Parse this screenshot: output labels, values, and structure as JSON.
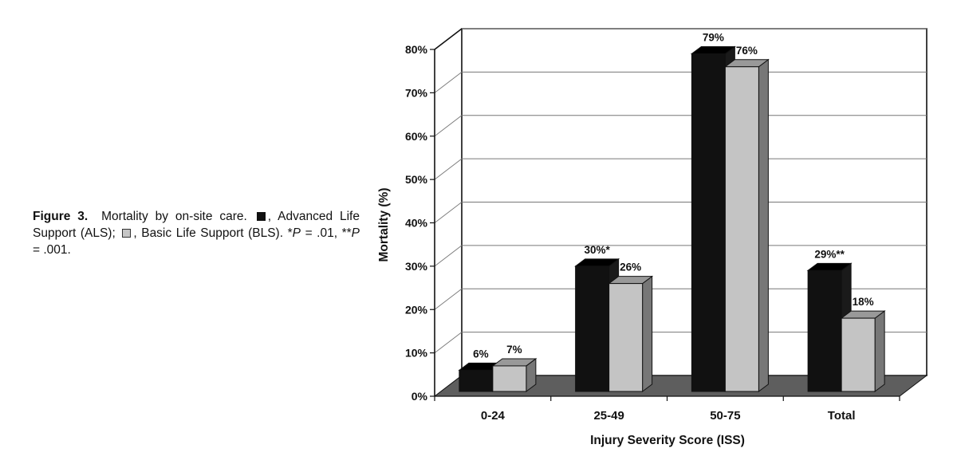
{
  "caption": {
    "label": "Figure 3.",
    "part1": "Mortality by on-site care.",
    "als_text": ", Advanced Life Support (ALS);",
    "bls_text": ", Basic Life Support (BLS).",
    "p_note_1_prefix": "*",
    "p_note_1_symbol": "P",
    "p_note_1_value": " = .01, ",
    "p_note_2_prefix": "**",
    "p_note_2_symbol": "P",
    "p_note_2_value": " = .001."
  },
  "chart_data": {
    "type": "bar",
    "style": "3d-clustered",
    "categories": [
      "0-24",
      "25-49",
      "50-75",
      "Total"
    ],
    "series": [
      {
        "key": "ALS",
        "color": "#111111",
        "values": [
          6,
          30,
          79,
          29
        ],
        "labels": [
          "6%",
          "30%*",
          "79%",
          "29%**"
        ]
      },
      {
        "key": "BLS",
        "color": "#c4c4c4",
        "values": [
          7,
          26,
          76,
          18
        ],
        "labels": [
          "7%",
          "26%",
          "76%",
          "18%"
        ]
      }
    ],
    "xlabel": "Injury Severity Score (ISS)",
    "ylabel": "Mortality (%)",
    "ylim": [
      0,
      80
    ],
    "yticks": [
      "0%",
      "10%",
      "20%",
      "30%",
      "40%",
      "50%",
      "60%",
      "70%",
      "80%"
    ],
    "grid": true,
    "legend": "in caption"
  }
}
